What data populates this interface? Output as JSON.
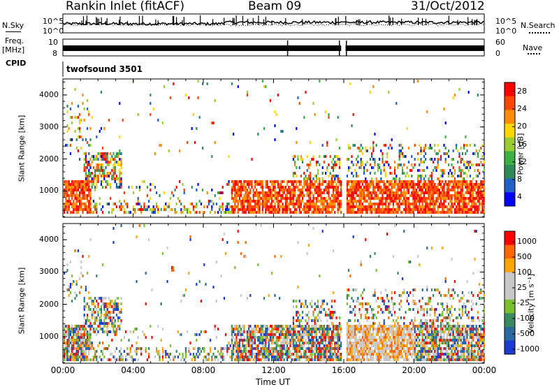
{
  "header": {
    "station": "Rankin Inlet (fitACF)",
    "beam": "Beam 09",
    "date": "31/Oct/2012"
  },
  "strip": {
    "nsky_label": "N.Sky",
    "nsearch_label": "N.Search",
    "freq_label": "Freq.",
    "freq_unit": "[MHz]",
    "nave_label": "Nave",
    "cpid_label": "CPID",
    "cpid_name": "twofsound 3501",
    "noise_ticks": [
      "10^5",
      "10^0"
    ],
    "noise_ticks_right": [
      "10^5",
      "10^0"
    ],
    "freq_ticks": [
      "10",
      "8"
    ],
    "nave_ticks": [
      "60",
      "0"
    ]
  },
  "colors": {
    "power": [
      "#0000ff",
      "#2060c8",
      "#2e8b57",
      "#3cb043",
      "#9acd32",
      "#ffd700",
      "#ff8c00",
      "#ff4500",
      "#ff0000"
    ],
    "velocity": [
      "#1a3ad0",
      "#2a6aa0",
      "#3a8a60",
      "#7ac030",
      "#c8c8c8",
      "#c8c8c8",
      "#ffa500",
      "#ff6600",
      "#ff0000"
    ]
  },
  "chart_data": [
    {
      "type": "heatmap",
      "name": "power",
      "xlabel": "Time UT",
      "ylabel": "Slant Range [km]",
      "xlim": [
        0,
        24
      ],
      "ylim": [
        180,
        4500
      ],
      "x_ticks": [
        "00:00",
        "04:00",
        "08:00",
        "12:00",
        "16:00",
        "20:00",
        "00:00"
      ],
      "y_ticks": [
        1000,
        2000,
        3000,
        4000
      ],
      "colorbar": {
        "label": "Power [dB]",
        "ticks": [
          "28",
          "24",
          "20",
          "16",
          "12",
          "8",
          "4"
        ],
        "range": [
          0,
          30
        ]
      },
      "data_gap_hours": [
        15.85,
        16.1
      ]
    },
    {
      "type": "heatmap",
      "name": "velocity",
      "xlabel": "Time UT",
      "ylabel": "Slant Range [km]",
      "xlim": [
        0,
        24
      ],
      "ylim": [
        180,
        4500
      ],
      "x_ticks": [
        "00:00",
        "04:00",
        "08:00",
        "12:00",
        "16:00",
        "20:00",
        "00:00"
      ],
      "y_ticks": [
        1000,
        2000,
        3000,
        4000
      ],
      "colorbar": {
        "label": "Velocity [m s⁻¹]",
        "ticks": [
          "1000",
          "500",
          "100",
          "25",
          "-25",
          "-100",
          "-500",
          "-1000"
        ],
        "range": [
          -1200,
          1200
        ]
      },
      "data_gap_hours": [
        15.85,
        16.1
      ]
    }
  ]
}
